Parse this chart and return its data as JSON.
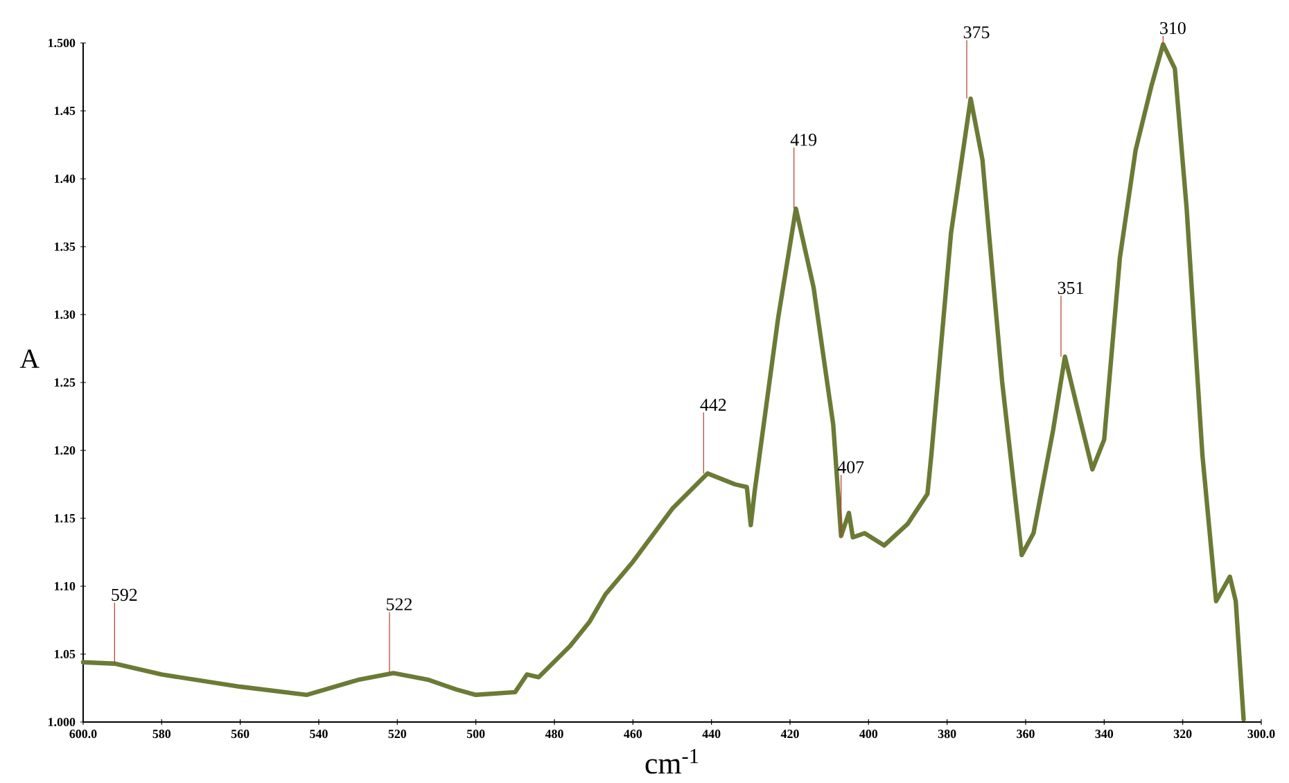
{
  "chart_data": {
    "type": "line",
    "xlabel": "cm$^{-1}$",
    "ylabel": "A",
    "xlim": [
      600,
      300
    ],
    "ylim": [
      1.0,
      1.5
    ],
    "xticks": [
      {
        "value": 600,
        "label": "600.0"
      },
      580,
      560,
      540,
      520,
      500,
      480,
      460,
      440,
      420,
      400,
      380,
      360,
      340,
      320,
      {
        "value": 300,
        "label": "300.0"
      }
    ],
    "yticks": [
      {
        "value": 1.0,
        "label": "1.000"
      },
      1.05,
      {
        "value": 1.1,
        "label": "1.10"
      },
      1.15,
      {
        "value": 1.2,
        "label": "1.20"
      },
      1.25,
      {
        "value": 1.3,
        "label": "1.30"
      },
      1.35,
      {
        "value": 1.4,
        "label": "1.40"
      },
      1.45,
      {
        "value": 1.5,
        "label": "1.500"
      }
    ],
    "marker": "none",
    "line_style": "solid",
    "series": [
      {
        "color": "#6b7a35",
        "x": [
          600,
          592,
          580,
          560,
          543,
          530,
          521,
          512,
          505,
          500,
          490,
          487,
          484,
          476,
          471,
          467,
          460,
          450,
          441,
          434,
          431,
          430,
          429,
          423,
          418.5,
          414,
          409,
          407,
          405,
          404,
          401,
          396,
          390,
          385,
          384,
          379,
          374,
          371,
          366,
          361,
          358,
          353,
          350,
          347,
          343,
          340,
          336,
          332,
          328,
          325,
          322,
          319,
          315,
          311.5,
          308,
          306.5,
          304.5
        ],
        "values": [
          1.044,
          1.043,
          1.035,
          1.026,
          1.02,
          1.031,
          1.036,
          1.031,
          1.024,
          1.02,
          1.022,
          1.035,
          1.033,
          1.056,
          1.074,
          1.094,
          1.118,
          1.157,
          1.183,
          1.175,
          1.173,
          1.145,
          1.17,
          1.298,
          1.378,
          1.32,
          1.219,
          1.137,
          1.154,
          1.136,
          1.139,
          1.13,
          1.146,
          1.168,
          1.197,
          1.36,
          1.459,
          1.414,
          1.251,
          1.123,
          1.139,
          1.215,
          1.269,
          1.233,
          1.186,
          1.208,
          1.342,
          1.421,
          1.468,
          1.499,
          1.481,
          1.378,
          1.197,
          1.089,
          1.107,
          1.089,
          1.002
        ]
      }
    ],
    "annotations": [
      {
        "text": "592",
        "x": 592,
        "y": 1.043
      },
      {
        "text": "522",
        "x": 522,
        "y": 1.036
      },
      {
        "text": "442",
        "x": 442,
        "y": 1.183
      },
      {
        "text": "419",
        "x": 419,
        "y": 1.378
      },
      {
        "text": "407",
        "x": 407,
        "y": 1.137
      },
      {
        "text": "375",
        "x": 375,
        "y": 1.459
      },
      {
        "text": "351",
        "x": 351,
        "y": 1.269
      },
      {
        "text": "310",
        "x": 325,
        "y": 1.499
      }
    ]
  }
}
